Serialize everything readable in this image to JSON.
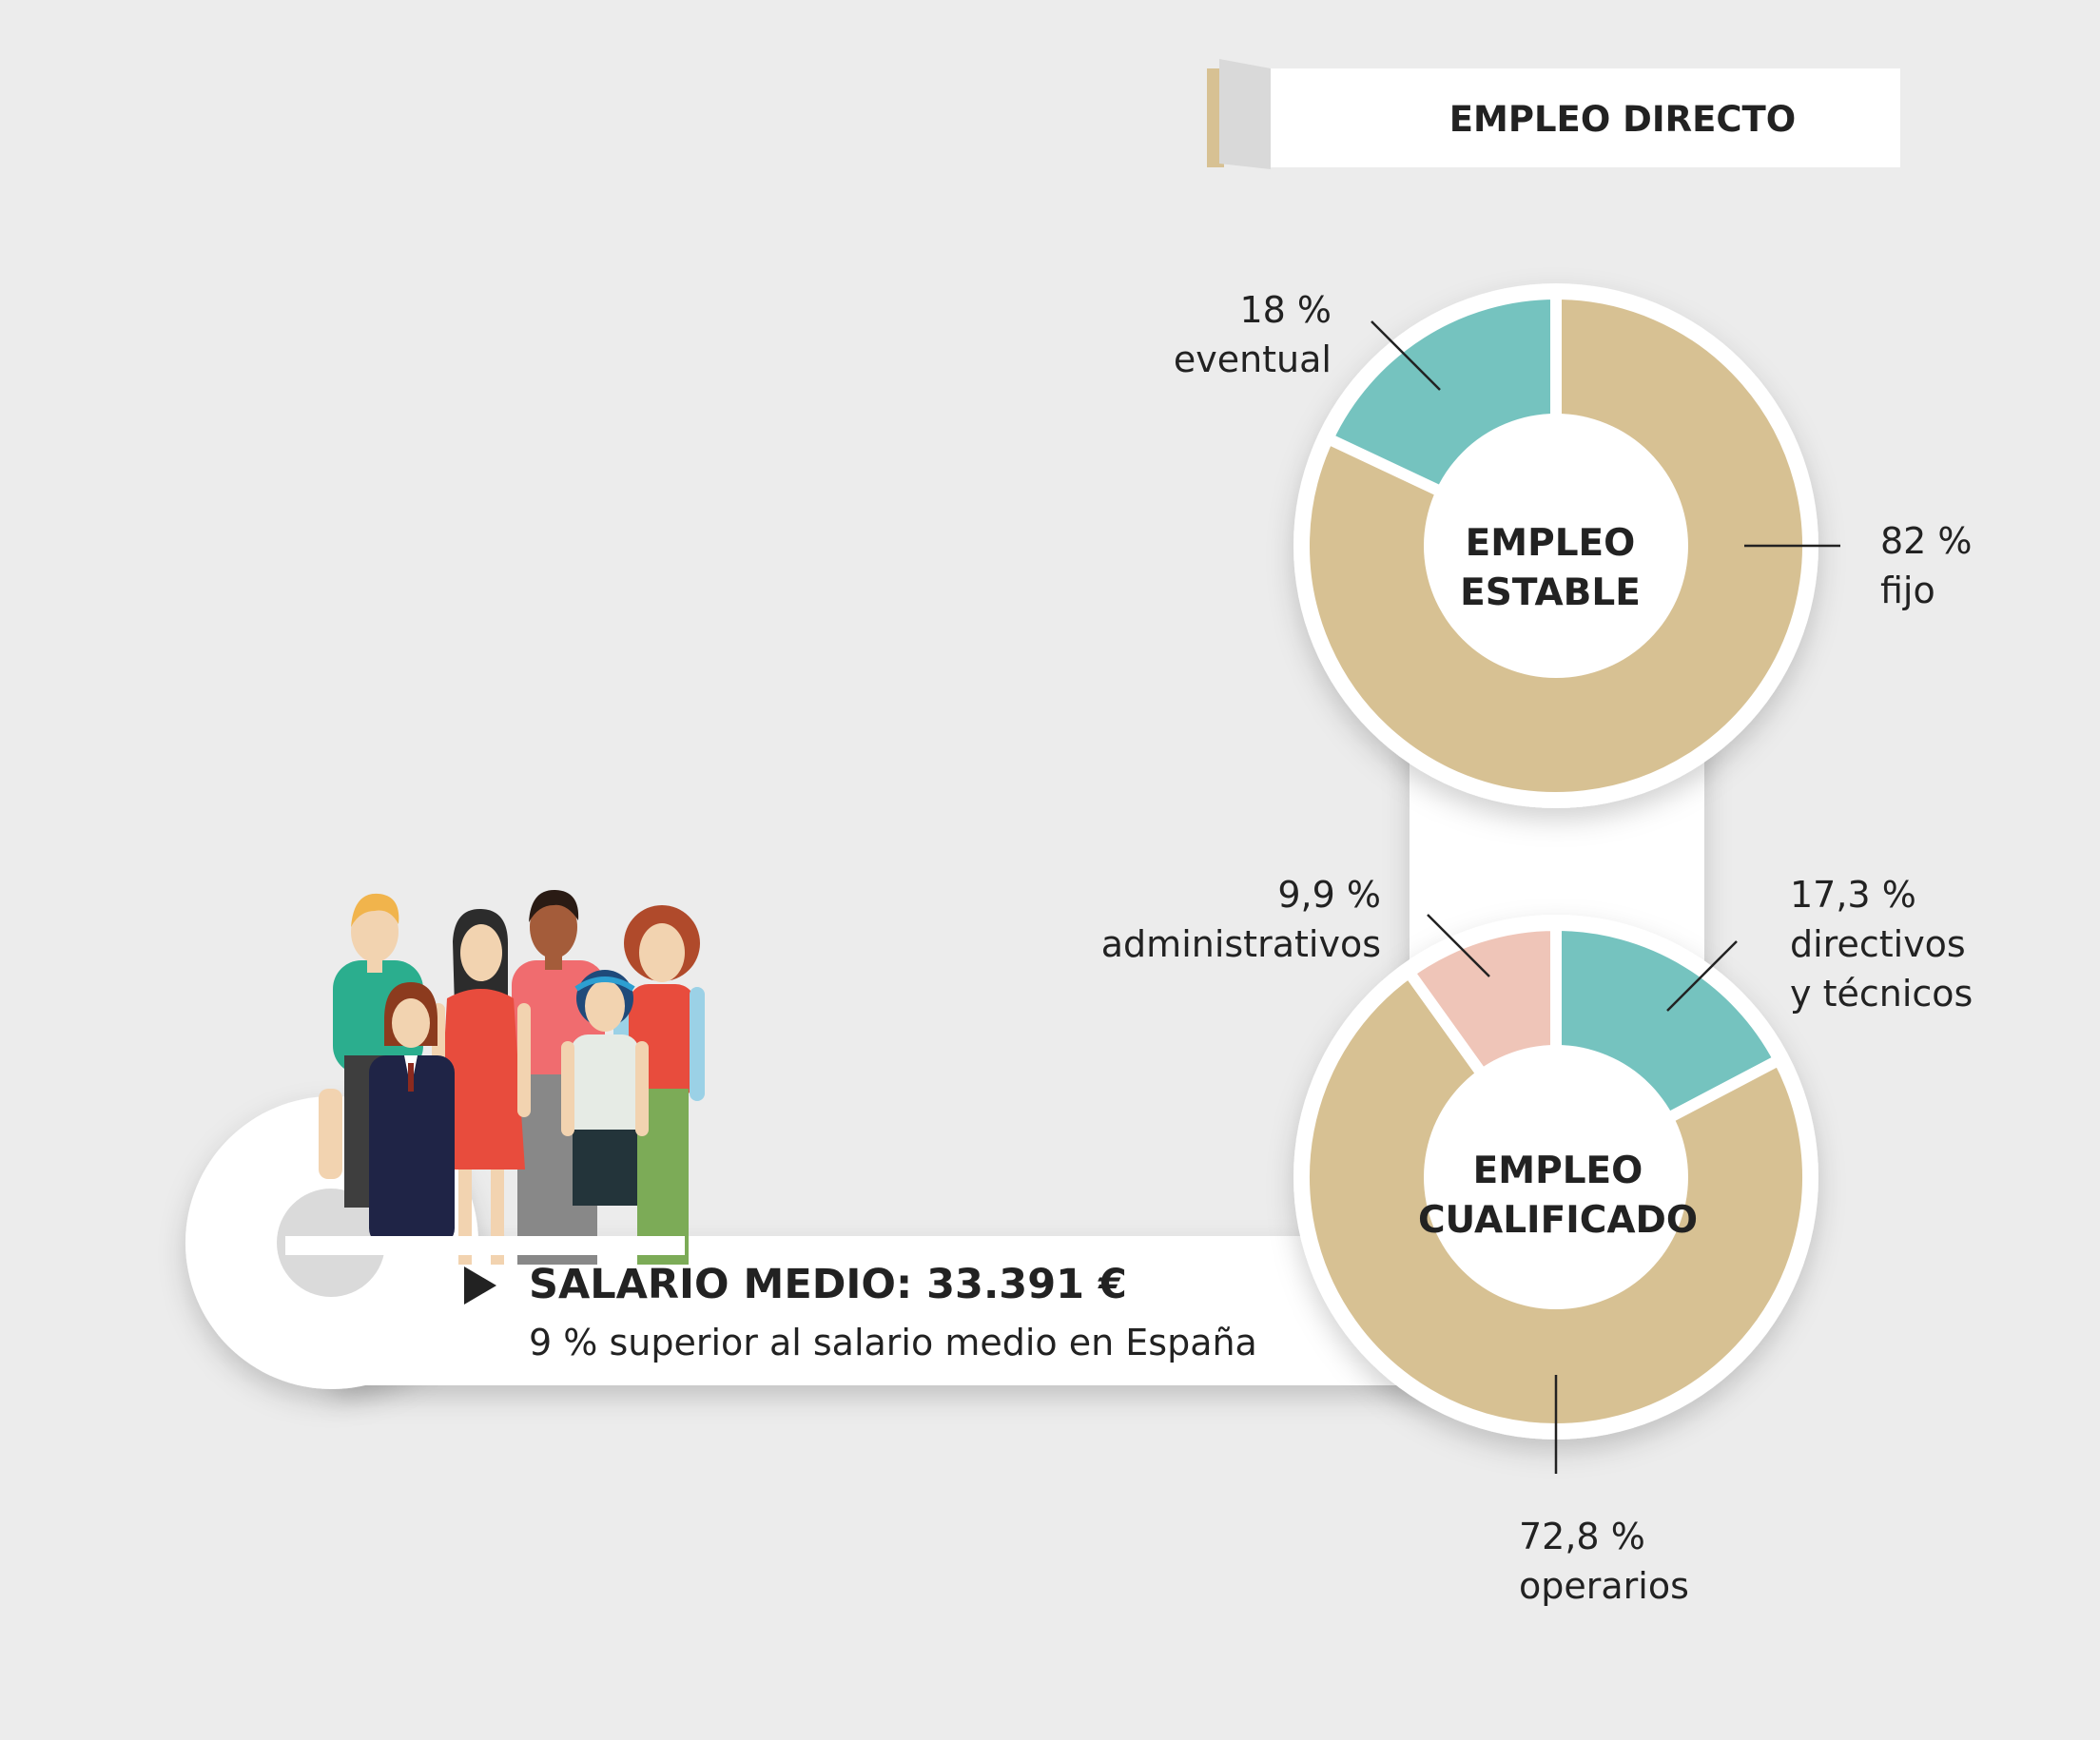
{
  "header": {
    "title": "EMPLEO DIRECTO"
  },
  "salary": {
    "title": "SALARIO MEDIO: 33.391 €",
    "subtitle": "9 % superior al salario medio en España"
  },
  "colors": {
    "background": "#ececec",
    "tan": "#d7c193",
    "teal": "#75c3bf",
    "pink": "#efc5b8",
    "text": "#222222"
  },
  "chart_data": [
    {
      "type": "pie",
      "title": "EMPLEO ESTABLE",
      "title_lines": [
        "EMPLEO",
        "ESTABLE"
      ],
      "slices": [
        {
          "label": "fijo",
          "value": 82,
          "value_label": "82 %",
          "color": "#d7c193"
        },
        {
          "label": "eventual",
          "value": 18,
          "value_label": "18 %",
          "color": "#75c3bf"
        }
      ]
    },
    {
      "type": "pie",
      "title": "EMPLEO CUALIFICADO",
      "title_lines": [
        "EMPLEO",
        "CUALIFICADO"
      ],
      "slices": [
        {
          "label": "directivos y técnicos",
          "label_lines": [
            "directivos",
            "y técnicos"
          ],
          "value": 17.3,
          "value_label": "17,3 %",
          "color": "#75c3bf"
        },
        {
          "label": "operarios",
          "value": 72.8,
          "value_label": "72,8 %",
          "color": "#d7c193"
        },
        {
          "label": "administrativos",
          "value": 9.9,
          "value_label": "9,9 %",
          "color": "#efc5b8"
        }
      ]
    }
  ]
}
